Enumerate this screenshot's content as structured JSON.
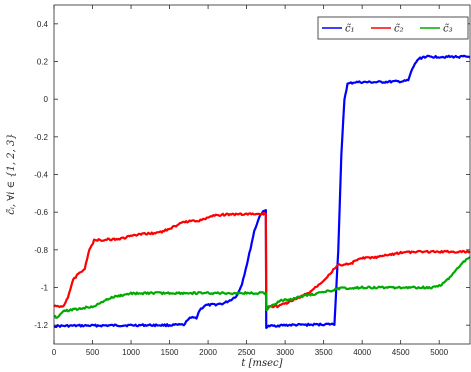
{
  "chart_data": {
    "type": "line",
    "xlabel": "t [msec]",
    "ylabel": "c̃ᵢ, ∀i ∈ {1, 2, 3}",
    "xlim": [
      0,
      5400
    ],
    "ylim": [
      -1.3,
      0.5
    ],
    "xticks": [
      0,
      500,
      1000,
      1500,
      2000,
      2500,
      3000,
      3500,
      4000,
      4500,
      5000
    ],
    "yticks": [
      0.4,
      0.2,
      0,
      -0.2,
      -0.4,
      -0.6,
      -0.8,
      -1,
      -1.2
    ],
    "xtick_labels": [
      "0",
      "500",
      "1000",
      "1500",
      "2000",
      "2500",
      "3000",
      "3500",
      "4000",
      "4500",
      "5000"
    ],
    "ytick_labels": [
      "0.4",
      "0.2",
      "0",
      "-0.2",
      "-0.4",
      "-0.6",
      "-0.8",
      "-1",
      "-1.2"
    ],
    "grid": false,
    "legend_position": "top-right",
    "series": [
      {
        "name": "c̃₁",
        "color": "#0000ff",
        "points": [
          [
            0,
            -1.205
          ],
          [
            300,
            -1.203
          ],
          [
            600,
            -1.202
          ],
          [
            900,
            -1.201
          ],
          [
            1200,
            -1.2
          ],
          [
            1500,
            -1.2
          ],
          [
            1700,
            -1.198
          ],
          [
            1730,
            -1.17
          ],
          [
            1780,
            -1.162
          ],
          [
            1850,
            -1.16
          ],
          [
            1890,
            -1.12
          ],
          [
            1960,
            -1.095
          ],
          [
            2100,
            -1.09
          ],
          [
            2200,
            -1.085
          ],
          [
            2300,
            -1.065
          ],
          [
            2380,
            -1.04
          ],
          [
            2440,
            -0.98
          ],
          [
            2520,
            -0.85
          ],
          [
            2600,
            -0.7
          ],
          [
            2680,
            -0.61
          ],
          [
            2750,
            -0.59
          ],
          [
            2755,
            -1.21
          ],
          [
            2800,
            -1.205
          ],
          [
            3000,
            -1.2
          ],
          [
            3300,
            -1.198
          ],
          [
            3580,
            -1.195
          ],
          [
            3640,
            -1.195
          ],
          [
            3690,
            -0.8
          ],
          [
            3730,
            -0.3
          ],
          [
            3770,
            0.0
          ],
          [
            3810,
            0.08
          ],
          [
            3900,
            0.09
          ],
          [
            4200,
            0.09
          ],
          [
            4550,
            0.095
          ],
          [
            4600,
            0.1
          ],
          [
            4650,
            0.16
          ],
          [
            4720,
            0.21
          ],
          [
            4800,
            0.225
          ],
          [
            5000,
            0.225
          ],
          [
            5400,
            0.225
          ]
        ]
      },
      {
        "name": "c̃₂",
        "color": "#ff0000",
        "points": [
          [
            0,
            -1.1
          ],
          [
            120,
            -1.1
          ],
          [
            180,
            -1.05
          ],
          [
            250,
            -0.96
          ],
          [
            330,
            -0.92
          ],
          [
            400,
            -0.9
          ],
          [
            460,
            -0.8
          ],
          [
            520,
            -0.75
          ],
          [
            700,
            -0.745
          ],
          [
            900,
            -0.74
          ],
          [
            950,
            -0.73
          ],
          [
            1100,
            -0.72
          ],
          [
            1300,
            -0.71
          ],
          [
            1400,
            -0.705
          ],
          [
            1480,
            -0.69
          ],
          [
            1600,
            -0.67
          ],
          [
            1700,
            -0.65
          ],
          [
            1850,
            -0.645
          ],
          [
            1950,
            -0.64
          ],
          [
            2000,
            -0.625
          ],
          [
            2100,
            -0.615
          ],
          [
            2500,
            -0.61
          ],
          [
            2750,
            -0.61
          ],
          [
            2755,
            -1.1
          ],
          [
            2900,
            -1.1
          ],
          [
            3100,
            -1.07
          ],
          [
            3300,
            -1.03
          ],
          [
            3450,
            -0.98
          ],
          [
            3550,
            -0.94
          ],
          [
            3640,
            -0.9
          ],
          [
            3700,
            -0.88
          ],
          [
            3860,
            -0.875
          ],
          [
            3900,
            -0.86
          ],
          [
            4000,
            -0.845
          ],
          [
            4200,
            -0.84
          ],
          [
            4300,
            -0.83
          ],
          [
            4500,
            -0.815
          ],
          [
            4800,
            -0.81
          ],
          [
            5000,
            -0.81
          ],
          [
            5400,
            -0.81
          ]
        ]
      },
      {
        "name": "c̃₃",
        "color": "#00aa00",
        "points": [
          [
            0,
            -1.15
          ],
          [
            40,
            -1.16
          ],
          [
            100,
            -1.13
          ],
          [
            200,
            -1.12
          ],
          [
            300,
            -1.115
          ],
          [
            400,
            -1.108
          ],
          [
            500,
            -1.1
          ],
          [
            580,
            -1.09
          ],
          [
            650,
            -1.07
          ],
          [
            780,
            -1.05
          ],
          [
            900,
            -1.04
          ],
          [
            1000,
            -1.032
          ],
          [
            1200,
            -1.03
          ],
          [
            1500,
            -1.03
          ],
          [
            2000,
            -1.03
          ],
          [
            2500,
            -1.03
          ],
          [
            2750,
            -1.03
          ],
          [
            2760,
            -1.12
          ],
          [
            2800,
            -1.1
          ],
          [
            2950,
            -1.07
          ],
          [
            3100,
            -1.06
          ],
          [
            3300,
            -1.04
          ],
          [
            3500,
            -1.025
          ],
          [
            3700,
            -1.005
          ],
          [
            4000,
            -1.0
          ],
          [
            4500,
            -1.0
          ],
          [
            4900,
            -1.0
          ],
          [
            5000,
            -0.99
          ],
          [
            5080,
            -0.97
          ],
          [
            5200,
            -0.92
          ],
          [
            5300,
            -0.87
          ],
          [
            5400,
            -0.84
          ]
        ]
      }
    ]
  }
}
